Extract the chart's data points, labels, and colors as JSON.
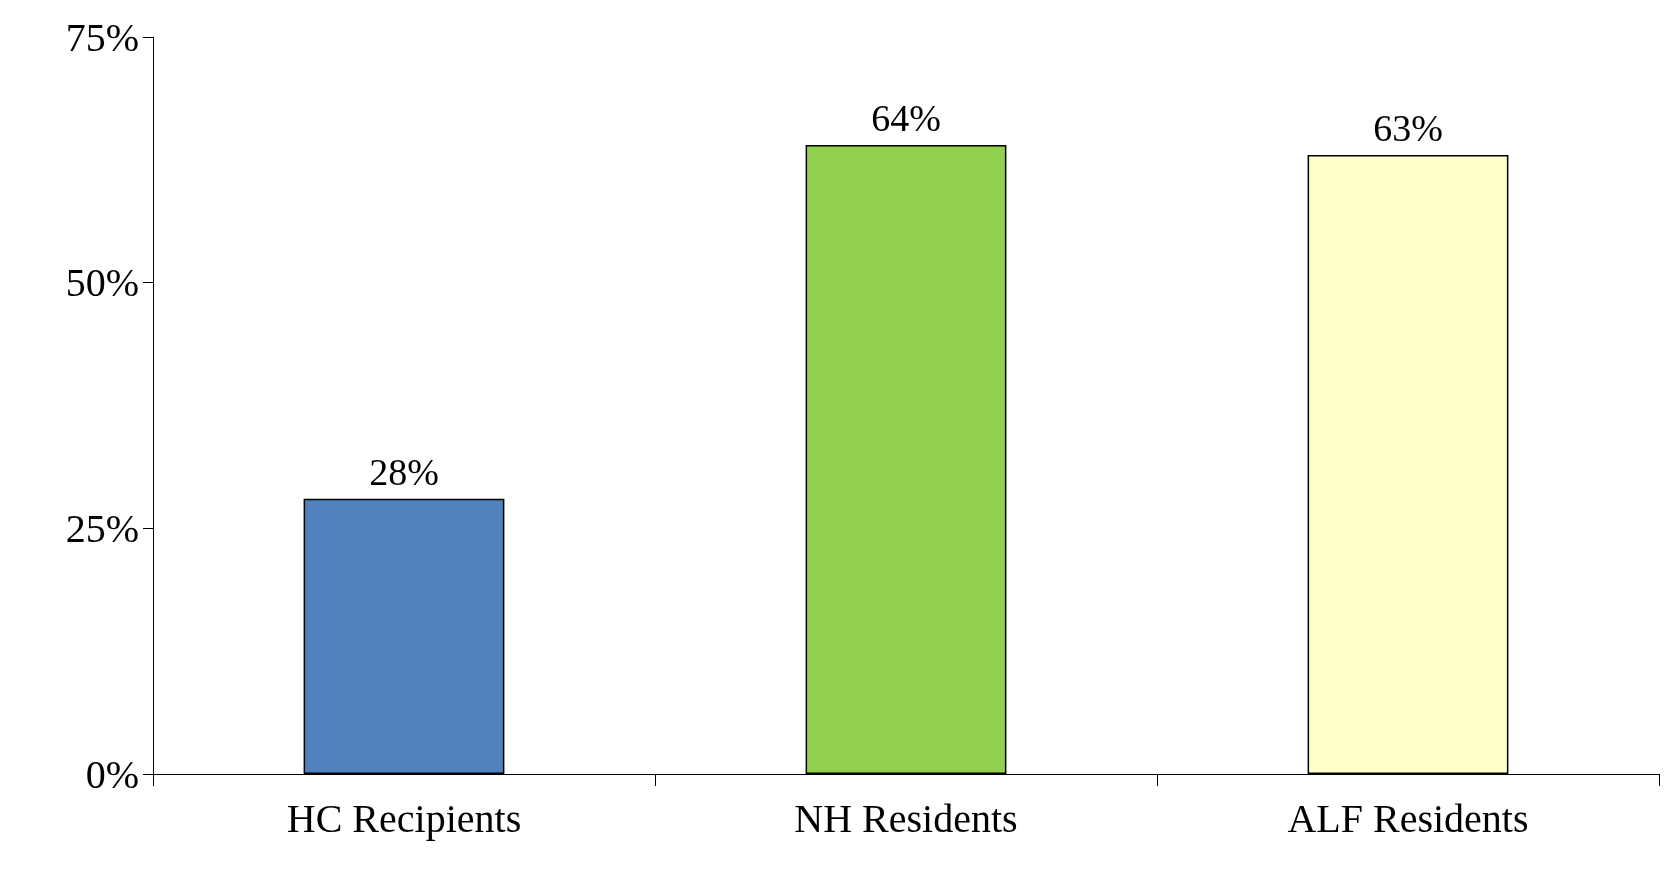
{
  "chart_data": {
    "type": "bar",
    "categories": [
      "HC Recipients",
      "NH Residents",
      "ALF Residents"
    ],
    "values": [
      28,
      64,
      63
    ],
    "colors": [
      "#4f81bd",
      "#92d050",
      "#ffffcc"
    ],
    "value_labels": [
      "28%",
      "64%",
      "63%"
    ],
    "ylim": [
      0,
      75
    ],
    "yticks": [
      {
        "value": 0,
        "label": "0%"
      },
      {
        "value": 25,
        "label": "25%"
      },
      {
        "value": 50,
        "label": "50%"
      },
      {
        "value": 75,
        "label": "75%"
      }
    ]
  }
}
